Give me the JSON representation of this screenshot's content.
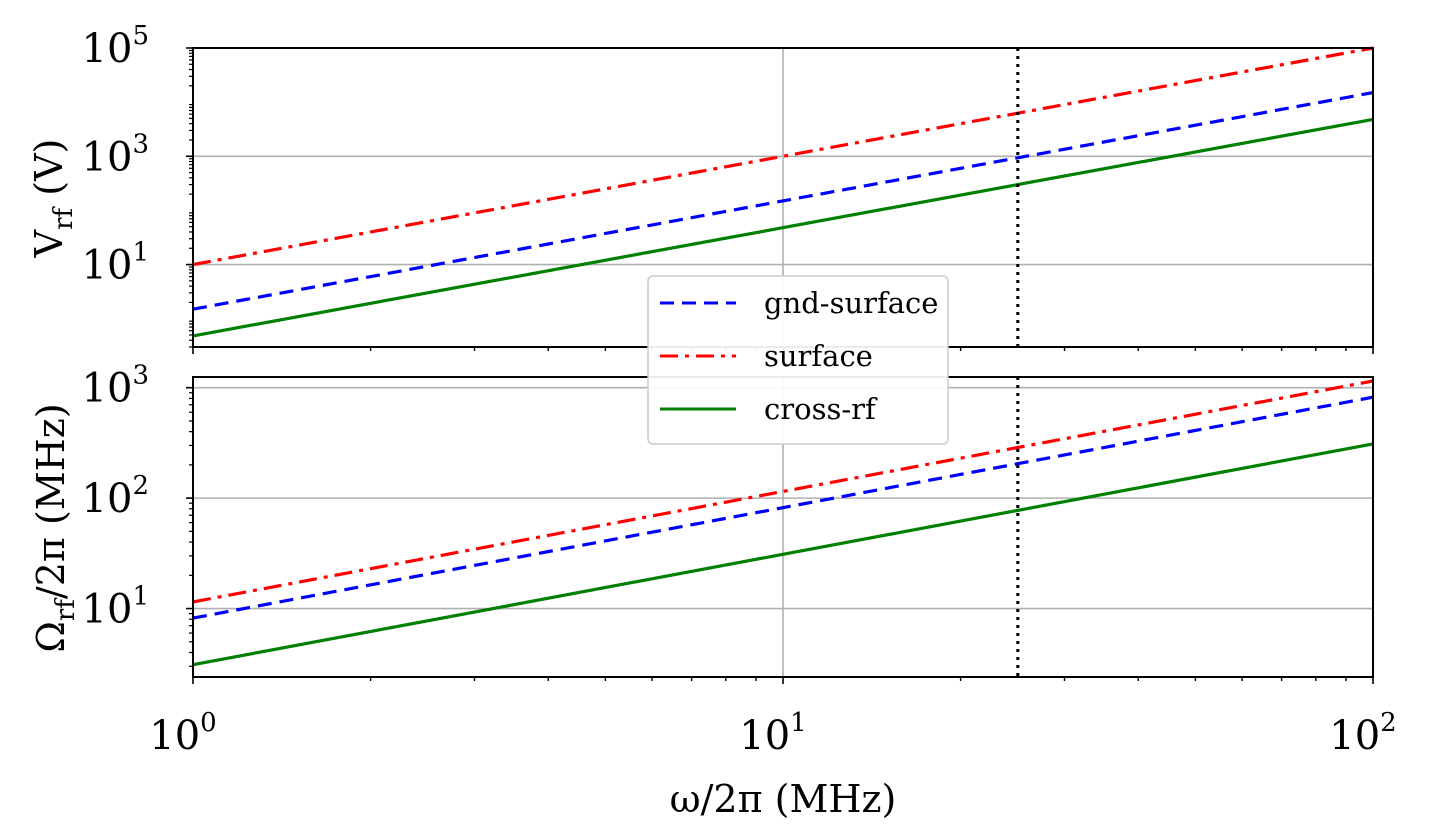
{
  "chart_data": [
    {
      "type": "line",
      "panel": "top",
      "x_scale": "log",
      "y_scale": "log",
      "xlim": [
        1,
        100
      ],
      "ylim": [
        0.3,
        100000
      ],
      "ylabel": {
        "main": "V",
        "sub": "rf",
        "unit": " (V)"
      },
      "yticks": [
        {
          "value": 10,
          "base": "10",
          "exp": "1"
        },
        {
          "value": 1000,
          "base": "10",
          "exp": "3"
        },
        {
          "value": 100000,
          "base": "10",
          "exp": "5"
        }
      ],
      "xgrid": [
        10
      ],
      "vline": 25,
      "series": [
        {
          "name": "gnd-surface",
          "style": "dashed",
          "color": "#0000ff",
          "x": [
            1,
            100
          ],
          "y": [
            1.5,
            15000
          ]
        },
        {
          "name": "surface",
          "style": "dashdot",
          "color": "#ff0000",
          "x": [
            1,
            100
          ],
          "y": [
            10,
            100000
          ]
        },
        {
          "name": "cross-rf",
          "style": "solid",
          "color": "#008000",
          "x": [
            1,
            100
          ],
          "y": [
            0.48,
            4800
          ]
        }
      ]
    },
    {
      "type": "line",
      "panel": "bottom",
      "x_scale": "log",
      "y_scale": "log",
      "xlim": [
        1,
        100
      ],
      "ylim": [
        2.4,
        1250
      ],
      "xlabel": "ω/2π (MHz)",
      "ylabel": {
        "main": "Ω",
        "sub": "rf",
        "unit": "/2π (MHz)"
      },
      "xticks": [
        {
          "value": 1,
          "base": "10",
          "exp": "0"
        },
        {
          "value": 10,
          "base": "10",
          "exp": "1"
        },
        {
          "value": 100,
          "base": "10",
          "exp": "2"
        }
      ],
      "yticks": [
        {
          "value": 10,
          "base": "10",
          "exp": "1"
        },
        {
          "value": 100,
          "base": "10",
          "exp": "2"
        },
        {
          "value": 1000,
          "base": "10",
          "exp": "3"
        }
      ],
      "xgrid": [
        10
      ],
      "vline": 25,
      "series": [
        {
          "name": "gnd-surface",
          "style": "dashed",
          "color": "#0000ff",
          "x": [
            1,
            100
          ],
          "y": [
            8.2,
            820
          ]
        },
        {
          "name": "surface",
          "style": "dashdot",
          "color": "#ff0000",
          "x": [
            1,
            100
          ],
          "y": [
            11.5,
            1150
          ]
        },
        {
          "name": "cross-rf",
          "style": "solid",
          "color": "#008000",
          "x": [
            1,
            100
          ],
          "y": [
            3.1,
            310
          ]
        }
      ]
    }
  ],
  "legend": {
    "placement": "center",
    "entries": [
      {
        "label": "gnd-surface",
        "style": "dashed",
        "color": "#0000ff"
      },
      {
        "label": "surface",
        "style": "dashdot",
        "color": "#ff0000"
      },
      {
        "label": "cross-rf",
        "style": "solid",
        "color": "#008000"
      }
    ]
  }
}
